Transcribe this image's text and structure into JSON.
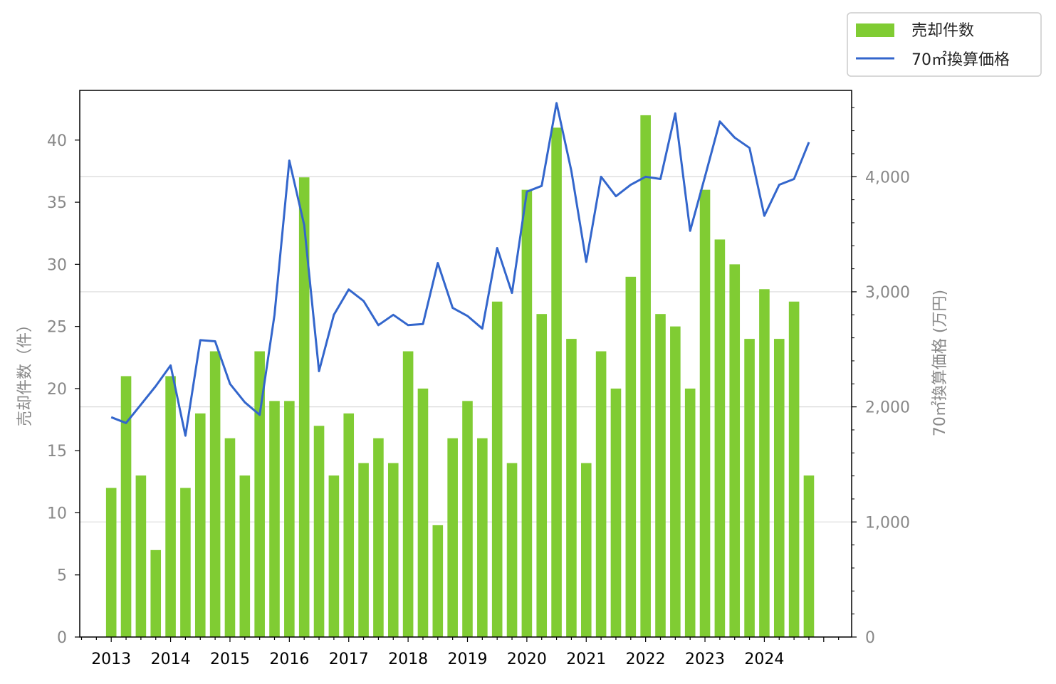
{
  "chart_data": {
    "type": "bar",
    "x_tick_labels": [
      "2013",
      "2014",
      "2015",
      "2016",
      "2017",
      "2018",
      "2019",
      "2020",
      "2021",
      "2022",
      "2023",
      "2024"
    ],
    "ylabel_left": "売却件数（件）",
    "ylabel_right": "70㎡換算価格 (万円)",
    "left_axis": {
      "ylim": [
        0,
        44
      ],
      "ticks": [
        0,
        5,
        10,
        15,
        20,
        25,
        30,
        35,
        40
      ],
      "tick_labels": [
        "0",
        "5",
        "10",
        "15",
        "20",
        "25",
        "30",
        "35",
        "40"
      ]
    },
    "right_axis": {
      "ylim": [
        0,
        4750
      ],
      "ticks": [
        0,
        1000,
        2000,
        3000,
        4000
      ],
      "tick_labels": [
        "0",
        "1,000",
        "2,000",
        "3,000",
        "4,000"
      ]
    },
    "grid": "horizontal (right axis)",
    "legend_placement": "upper-right, outside",
    "series": [
      {
        "name": "売却件数",
        "kind": "bar",
        "axis": "left",
        "color": "#80cc33",
        "x": [
          2013.0,
          2013.25,
          2013.5,
          2013.75,
          2014.0,
          2014.25,
          2014.5,
          2014.75,
          2015.0,
          2015.25,
          2015.5,
          2015.75,
          2016.0,
          2016.25,
          2016.5,
          2016.75,
          2017.0,
          2017.25,
          2017.5,
          2017.75,
          2018.0,
          2018.25,
          2018.5,
          2018.75,
          2019.0,
          2019.25,
          2019.5,
          2019.75,
          2020.0,
          2020.25,
          2020.5,
          2020.75,
          2021.0,
          2021.25,
          2021.5,
          2021.75,
          2022.0,
          2022.25,
          2022.5,
          2022.75,
          2023.0,
          2023.25,
          2023.5,
          2023.75,
          2024.0,
          2024.25,
          2024.5,
          2024.75
        ],
        "values": [
          12,
          21,
          13,
          7,
          21,
          12,
          18,
          23,
          16,
          13,
          23,
          19,
          19,
          37,
          17,
          13,
          18,
          14,
          16,
          14,
          23,
          20,
          9,
          16,
          19,
          16,
          27,
          14,
          36,
          26,
          41,
          24,
          14,
          23,
          20,
          29,
          42,
          26,
          25,
          20,
          36,
          32,
          30,
          24,
          28,
          24,
          27,
          13
        ]
      },
      {
        "name": "70㎡換算価格",
        "kind": "line",
        "axis": "right",
        "color": "#3366cc",
        "x": [
          2013.0,
          2013.25,
          2013.5,
          2013.75,
          2014.0,
          2014.25,
          2014.5,
          2014.75,
          2015.0,
          2015.25,
          2015.5,
          2015.75,
          2016.0,
          2016.25,
          2016.5,
          2016.75,
          2017.0,
          2017.25,
          2017.5,
          2017.75,
          2018.0,
          2018.25,
          2018.5,
          2018.75,
          2019.0,
          2019.25,
          2019.5,
          2019.75,
          2020.0,
          2020.25,
          2020.5,
          2020.75,
          2021.0,
          2021.25,
          2021.5,
          2021.75,
          2022.0,
          2022.25,
          2022.5,
          2022.75,
          2023.0,
          2023.25,
          2023.5,
          2023.75,
          2024.0,
          2024.25,
          2024.5,
          2024.75
        ],
        "values": [
          1910,
          1860,
          2020,
          2180,
          2360,
          1750,
          2580,
          2570,
          2200,
          2040,
          1930,
          2800,
          4140,
          3580,
          2310,
          2800,
          3020,
          2920,
          2710,
          2800,
          2710,
          2720,
          3250,
          2860,
          2790,
          2680,
          3380,
          2990,
          3870,
          3920,
          4640,
          4050,
          3260,
          4000,
          3830,
          3930,
          4000,
          3980,
          4550,
          3530,
          4000,
          4480,
          4340,
          4250,
          3660,
          3930,
          3980,
          4300
        ]
      }
    ]
  }
}
